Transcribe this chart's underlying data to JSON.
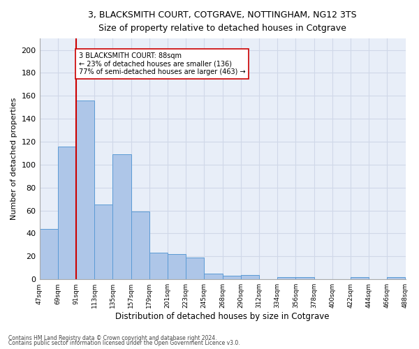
{
  "title1": "3, BLACKSMITH COURT, COTGRAVE, NOTTINGHAM, NG12 3TS",
  "title2": "Size of property relative to detached houses in Cotgrave",
  "xlabel": "Distribution of detached houses by size in Cotgrave",
  "ylabel": "Number of detached properties",
  "bar_values": [
    44,
    116,
    156,
    65,
    109,
    59,
    23,
    22,
    19,
    5,
    3,
    4,
    0,
    2,
    2,
    0,
    0,
    2,
    0,
    2
  ],
  "bin_labels": [
    "47sqm",
    "69sqm",
    "91sqm",
    "113sqm",
    "135sqm",
    "157sqm",
    "179sqm",
    "201sqm",
    "223sqm",
    "245sqm",
    "268sqm",
    "290sqm",
    "312sqm",
    "334sqm",
    "356sqm",
    "378sqm",
    "400sqm",
    "422sqm",
    "444sqm",
    "466sqm",
    "488sqm"
  ],
  "bar_color": "#aec6e8",
  "bar_edge_color": "#5b9bd5",
  "vline_color": "#cc0000",
  "annotation_text": "3 BLACKSMITH COURT: 88sqm\n← 23% of detached houses are smaller (136)\n77% of semi-detached houses are larger (463) →",
  "annotation_box_color": "#ffffff",
  "annotation_box_edge": "#cc0000",
  "ylim": [
    0,
    210
  ],
  "yticks": [
    0,
    20,
    40,
    60,
    80,
    100,
    120,
    140,
    160,
    180,
    200
  ],
  "grid_color": "#d0d8e8",
  "bg_color": "#e8eef8",
  "footer1": "Contains HM Land Registry data © Crown copyright and database right 2024.",
  "footer2": "Contains public sector information licensed under the Open Government Licence v3.0."
}
